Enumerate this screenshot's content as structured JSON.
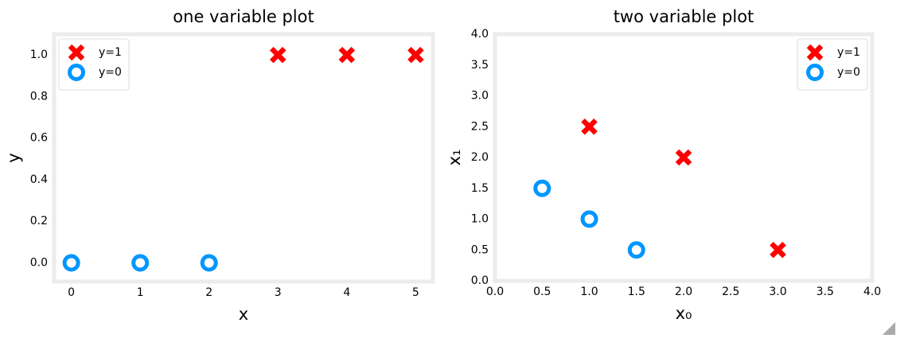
{
  "chart_data": [
    {
      "type": "scatter",
      "title": "one variable plot",
      "xlabel": "x",
      "ylabel": "y",
      "xlim": [
        -0.25,
        5.25
      ],
      "ylim": [
        -0.09,
        1.1
      ],
      "xticks": [
        0,
        1,
        2,
        3,
        4,
        5
      ],
      "yticks": [
        {
          "value": 0,
          "label": "0.0"
        },
        {
          "value": 0.2,
          "label": "0.2"
        },
        {
          "value": 0.4,
          "label": "0.4"
        },
        {
          "value": 0.6,
          "label": "0.6"
        },
        {
          "value": 0.8,
          "label": "0.8"
        },
        {
          "value": 1,
          "label": "1.0"
        }
      ],
      "legend": "upper left",
      "series": [
        {
          "name": "y=1",
          "color": "#ff0000",
          "marker": "x",
          "x": [
            3,
            4,
            5
          ],
          "values": [
            1,
            1,
            1
          ]
        },
        {
          "name": "y=0",
          "color": "#0096ff",
          "marker": "o",
          "x": [
            0,
            1,
            2
          ],
          "values": [
            0,
            0,
            0
          ]
        }
      ]
    },
    {
      "type": "scatter",
      "title": "two variable plot",
      "xlabel": "x₀",
      "ylabel": "x₁",
      "xlim": [
        0,
        4
      ],
      "ylim": [
        0,
        4
      ],
      "xticks": [
        {
          "value": 0,
          "label": "0.0"
        },
        {
          "value": 0.5,
          "label": "0.5"
        },
        {
          "value": 1,
          "label": "1.0"
        },
        {
          "value": 1.5,
          "label": "1.5"
        },
        {
          "value": 2,
          "label": "2.0"
        },
        {
          "value": 2.5,
          "label": "2.5"
        },
        {
          "value": 3,
          "label": "3.0"
        },
        {
          "value": 3.5,
          "label": "3.5"
        },
        {
          "value": 4,
          "label": "4.0"
        }
      ],
      "yticks": [
        {
          "value": 0,
          "label": "0.0"
        },
        {
          "value": 0.5,
          "label": "0.5"
        },
        {
          "value": 1,
          "label": "1.0"
        },
        {
          "value": 1.5,
          "label": "1.5"
        },
        {
          "value": 2,
          "label": "2.0"
        },
        {
          "value": 2.5,
          "label": "2.5"
        },
        {
          "value": 3,
          "label": "3.0"
        },
        {
          "value": 3.5,
          "label": "3.5"
        },
        {
          "value": 4,
          "label": "4.0"
        }
      ],
      "legend": "upper right",
      "series": [
        {
          "name": "y=1",
          "color": "#ff0000",
          "marker": "x",
          "x": [
            1,
            2,
            3
          ],
          "values": [
            2.5,
            2,
            0.5
          ]
        },
        {
          "name": "y=0",
          "color": "#0096ff",
          "marker": "o",
          "x": [
            0.5,
            1,
            1.5
          ],
          "values": [
            1.5,
            1,
            0.5
          ]
        }
      ]
    }
  ]
}
